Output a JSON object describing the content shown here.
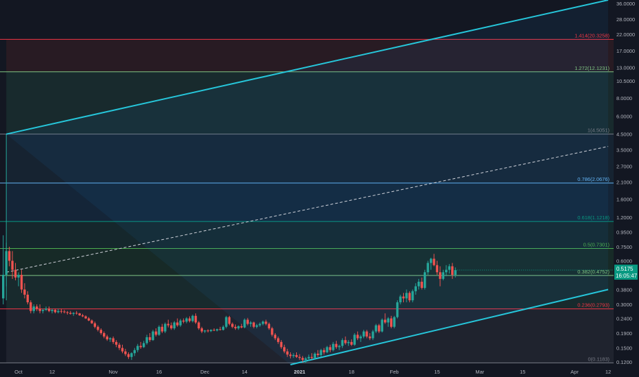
{
  "chart_data": {
    "type": "candlestick",
    "y_scale": "log",
    "ylim": [
      0.115,
      38.0
    ],
    "price_ticks": [
      "36.0000",
      "28.0000",
      "22.0000",
      "17.0000",
      "13.0000",
      "10.5000",
      "8.0000",
      "6.0000",
      "4.5000",
      "3.5000",
      "2.7000",
      "2.1000",
      "1.6000",
      "1.2000",
      "0.9500",
      "0.7500",
      "0.6000",
      "0.4800",
      "0.3800",
      "0.3000",
      "0.2400",
      "0.1900",
      "0.1500",
      "0.1200"
    ],
    "time_ticks": [
      {
        "label": "Oct",
        "date": "2020-10-01",
        "bold": false
      },
      {
        "label": "12",
        "date": "2020-10-12",
        "bold": false
      },
      {
        "label": "Nov",
        "date": "2020-11-01",
        "bold": false
      },
      {
        "label": "16",
        "date": "2020-11-16",
        "bold": false
      },
      {
        "label": "Dec",
        "date": "2020-12-01",
        "bold": false
      },
      {
        "label": "14",
        "date": "2020-12-14",
        "bold": false
      },
      {
        "label": "2021",
        "date": "2021-01-01",
        "bold": true
      },
      {
        "label": "18",
        "date": "2021-01-18",
        "bold": false
      },
      {
        "label": "Feb",
        "date": "2021-02-01",
        "bold": false
      },
      {
        "label": "15",
        "date": "2021-02-15",
        "bold": false
      },
      {
        "label": "Mar",
        "date": "2021-03-01",
        "bold": false
      },
      {
        "label": "15",
        "date": "2021-03-15",
        "bold": false
      },
      {
        "label": "Apr",
        "date": "2021-04-01",
        "bold": false
      },
      {
        "label": "12",
        "date": "2021-04-12",
        "bold": false
      }
    ],
    "fib_levels": [
      {
        "label": "0(0.1183)",
        "value": 0.1183,
        "color": "#787b86"
      },
      {
        "label": "0.236(0.2793)",
        "value": 0.2793,
        "color": "#f23645"
      },
      {
        "label": "0.382(0.4752)",
        "value": 0.4752,
        "color": "#81c784"
      },
      {
        "label": "0.5(0.7301)",
        "value": 0.7301,
        "color": "#4caf50"
      },
      {
        "label": "0.618(1.1218)",
        "value": 1.1218,
        "color": "#089981"
      },
      {
        "label": "0.786(2.0676)",
        "value": 2.0676,
        "color": "#64b5f6"
      },
      {
        "label": "1(4.5051)",
        "value": 4.5051,
        "color": "#787b86"
      },
      {
        "label": "1.272(12.1231)",
        "value": 12.1231,
        "color": "#81c784"
      },
      {
        "label": "1.414(20.3258)",
        "value": 20.3258,
        "color": "#f23645"
      }
    ],
    "channel": {
      "color": "#26c6da",
      "upper": {
        "from": {
          "date": "2020-09-27",
          "value": 4.5
        },
        "to": {
          "date": "2021-04-12",
          "value": 38.0
        }
      },
      "lower": {
        "from": {
          "date": "2020-12-29",
          "value": 0.115
        },
        "to": {
          "date": "2021-04-12",
          "value": 0.38
        }
      },
      "mid": {
        "from": {
          "date": "2020-09-27",
          "value": 0.5
        },
        "to": {
          "date": "2021-04-12",
          "value": 3.7
        }
      }
    },
    "ohlc": [
      [
        "2020-09-26",
        0.33,
        0.9,
        0.3,
        0.48
      ],
      [
        "2020-09-27",
        0.48,
        0.8,
        0.4,
        0.7
      ],
      [
        "2020-09-28",
        0.7,
        0.75,
        0.55,
        0.6
      ],
      [
        "2020-09-29",
        0.6,
        0.7,
        0.45,
        0.52
      ],
      [
        "2020-09-30",
        0.52,
        0.58,
        0.44,
        0.46
      ],
      [
        "2020-10-01",
        0.46,
        0.5,
        0.4,
        0.48
      ],
      [
        "2020-10-02",
        0.48,
        0.52,
        0.36,
        0.38
      ],
      [
        "2020-10-03",
        0.38,
        0.42,
        0.33,
        0.35
      ],
      [
        "2020-10-04",
        0.35,
        0.37,
        0.3,
        0.31
      ],
      [
        "2020-10-05",
        0.31,
        0.32,
        0.26,
        0.27
      ],
      [
        "2020-10-06",
        0.27,
        0.3,
        0.26,
        0.29
      ],
      [
        "2020-10-07",
        0.29,
        0.3,
        0.27,
        0.28
      ],
      [
        "2020-10-08",
        0.28,
        0.3,
        0.26,
        0.27
      ],
      [
        "2020-10-09",
        0.27,
        0.28,
        0.26,
        0.275
      ],
      [
        "2020-10-10",
        0.275,
        0.29,
        0.27,
        0.28
      ],
      [
        "2020-10-11",
        0.28,
        0.29,
        0.265,
        0.27
      ],
      [
        "2020-10-12",
        0.27,
        0.28,
        0.26,
        0.275
      ],
      [
        "2020-10-13",
        0.275,
        0.28,
        0.26,
        0.265
      ],
      [
        "2020-10-14",
        0.265,
        0.28,
        0.26,
        0.27
      ],
      [
        "2020-10-15",
        0.27,
        0.28,
        0.26,
        0.268
      ],
      [
        "2020-10-16",
        0.268,
        0.275,
        0.26,
        0.265
      ],
      [
        "2020-10-17",
        0.265,
        0.27,
        0.255,
        0.262
      ],
      [
        "2020-10-18",
        0.262,
        0.27,
        0.255,
        0.258
      ],
      [
        "2020-10-19",
        0.258,
        0.265,
        0.25,
        0.262
      ],
      [
        "2020-10-20",
        0.262,
        0.27,
        0.255,
        0.26
      ],
      [
        "2020-10-21",
        0.26,
        0.262,
        0.25,
        0.252
      ],
      [
        "2020-10-22",
        0.252,
        0.258,
        0.245,
        0.248
      ],
      [
        "2020-10-23",
        0.248,
        0.252,
        0.238,
        0.24
      ],
      [
        "2020-10-24",
        0.24,
        0.245,
        0.23,
        0.232
      ],
      [
        "2020-10-25",
        0.232,
        0.236,
        0.22,
        0.222
      ],
      [
        "2020-10-26",
        0.222,
        0.228,
        0.205,
        0.21
      ],
      [
        "2020-10-27",
        0.21,
        0.215,
        0.195,
        0.2
      ],
      [
        "2020-10-28",
        0.2,
        0.205,
        0.185,
        0.19
      ],
      [
        "2020-10-29",
        0.19,
        0.195,
        0.175,
        0.18
      ],
      [
        "2020-10-30",
        0.18,
        0.185,
        0.168,
        0.172
      ],
      [
        "2020-10-31",
        0.172,
        0.178,
        0.165,
        0.175
      ],
      [
        "2020-11-01",
        0.175,
        0.18,
        0.16,
        0.165
      ],
      [
        "2020-11-02",
        0.165,
        0.17,
        0.152,
        0.158
      ],
      [
        "2020-11-03",
        0.158,
        0.163,
        0.145,
        0.15
      ],
      [
        "2020-11-04",
        0.15,
        0.158,
        0.138,
        0.142
      ],
      [
        "2020-11-05",
        0.142,
        0.148,
        0.132,
        0.136
      ],
      [
        "2020-11-06",
        0.136,
        0.14,
        0.126,
        0.13
      ],
      [
        "2020-11-07",
        0.13,
        0.14,
        0.124,
        0.138
      ],
      [
        "2020-11-08",
        0.138,
        0.15,
        0.132,
        0.145
      ],
      [
        "2020-11-09",
        0.145,
        0.16,
        0.14,
        0.155
      ],
      [
        "2020-11-10",
        0.155,
        0.165,
        0.148,
        0.152
      ],
      [
        "2020-11-11",
        0.152,
        0.168,
        0.15,
        0.162
      ],
      [
        "2020-11-12",
        0.162,
        0.185,
        0.158,
        0.178
      ],
      [
        "2020-11-13",
        0.178,
        0.19,
        0.165,
        0.17
      ],
      [
        "2020-11-14",
        0.17,
        0.2,
        0.168,
        0.195
      ],
      [
        "2020-11-15",
        0.195,
        0.205,
        0.18,
        0.185
      ],
      [
        "2020-11-16",
        0.185,
        0.215,
        0.182,
        0.21
      ],
      [
        "2020-11-17",
        0.21,
        0.22,
        0.19,
        0.195
      ],
      [
        "2020-11-18",
        0.195,
        0.225,
        0.19,
        0.22
      ],
      [
        "2020-11-19",
        0.22,
        0.235,
        0.208,
        0.215
      ],
      [
        "2020-11-20",
        0.215,
        0.225,
        0.2,
        0.205
      ],
      [
        "2020-11-21",
        0.205,
        0.23,
        0.2,
        0.225
      ],
      [
        "2020-11-22",
        0.225,
        0.24,
        0.21,
        0.215
      ],
      [
        "2020-11-23",
        0.215,
        0.238,
        0.21,
        0.232
      ],
      [
        "2020-11-24",
        0.232,
        0.24,
        0.222,
        0.228
      ],
      [
        "2020-11-25",
        0.228,
        0.245,
        0.222,
        0.24
      ],
      [
        "2020-11-26",
        0.24,
        0.248,
        0.225,
        0.23
      ],
      [
        "2020-11-27",
        0.23,
        0.255,
        0.225,
        0.25
      ],
      [
        "2020-11-28",
        0.25,
        0.26,
        0.22,
        0.225
      ],
      [
        "2020-11-29",
        0.225,
        0.23,
        0.2,
        0.205
      ],
      [
        "2020-11-30",
        0.205,
        0.21,
        0.19,
        0.195
      ],
      [
        "2020-12-01",
        0.195,
        0.2,
        0.19,
        0.198
      ],
      [
        "2020-12-02",
        0.198,
        0.202,
        0.192,
        0.196
      ],
      [
        "2020-12-03",
        0.196,
        0.202,
        0.193,
        0.2
      ],
      [
        "2020-12-04",
        0.2,
        0.205,
        0.196,
        0.198
      ],
      [
        "2020-12-05",
        0.198,
        0.204,
        0.195,
        0.202
      ],
      [
        "2020-12-06",
        0.202,
        0.21,
        0.198,
        0.2
      ],
      [
        "2020-12-07",
        0.2,
        0.215,
        0.198,
        0.21
      ],
      [
        "2020-12-08",
        0.21,
        0.25,
        0.205,
        0.245
      ],
      [
        "2020-12-09",
        0.245,
        0.25,
        0.215,
        0.22
      ],
      [
        "2020-12-10",
        0.22,
        0.225,
        0.205,
        0.21
      ],
      [
        "2020-12-11",
        0.21,
        0.218,
        0.2,
        0.205
      ],
      [
        "2020-12-12",
        0.205,
        0.215,
        0.2,
        0.212
      ],
      [
        "2020-12-13",
        0.212,
        0.22,
        0.205,
        0.208
      ],
      [
        "2020-12-14",
        0.208,
        0.24,
        0.205,
        0.235
      ],
      [
        "2020-12-15",
        0.235,
        0.242,
        0.215,
        0.22
      ],
      [
        "2020-12-16",
        0.22,
        0.23,
        0.21,
        0.225
      ],
      [
        "2020-12-17",
        0.225,
        0.228,
        0.205,
        0.21
      ],
      [
        "2020-12-18",
        0.21,
        0.22,
        0.205,
        0.215
      ],
      [
        "2020-12-19",
        0.215,
        0.225,
        0.21,
        0.22
      ],
      [
        "2020-12-20",
        0.22,
        0.232,
        0.215,
        0.228
      ],
      [
        "2020-12-21",
        0.228,
        0.235,
        0.215,
        0.22
      ],
      [
        "2020-12-22",
        0.22,
        0.225,
        0.2,
        0.205
      ],
      [
        "2020-12-23",
        0.205,
        0.21,
        0.18,
        0.185
      ],
      [
        "2020-12-24",
        0.185,
        0.19,
        0.17,
        0.175
      ],
      [
        "2020-12-25",
        0.175,
        0.18,
        0.16,
        0.165
      ],
      [
        "2020-12-26",
        0.165,
        0.17,
        0.148,
        0.152
      ],
      [
        "2020-12-27",
        0.152,
        0.158,
        0.138,
        0.142
      ],
      [
        "2020-12-28",
        0.142,
        0.148,
        0.13,
        0.135
      ],
      [
        "2020-12-29",
        0.135,
        0.14,
        0.127,
        0.132
      ],
      [
        "2020-12-30",
        0.132,
        0.138,
        0.128,
        0.134
      ],
      [
        "2020-12-31",
        0.134,
        0.14,
        0.128,
        0.13
      ],
      [
        "2021-01-01",
        0.13,
        0.136,
        0.124,
        0.128
      ],
      [
        "2021-01-02",
        0.128,
        0.132,
        0.12,
        0.124
      ],
      [
        "2021-01-03",
        0.124,
        0.13,
        0.118,
        0.127
      ],
      [
        "2021-01-04",
        0.127,
        0.135,
        0.122,
        0.13
      ],
      [
        "2021-01-05",
        0.13,
        0.138,
        0.125,
        0.128
      ],
      [
        "2021-01-06",
        0.128,
        0.14,
        0.126,
        0.137
      ],
      [
        "2021-01-07",
        0.137,
        0.145,
        0.13,
        0.134
      ],
      [
        "2021-01-08",
        0.134,
        0.148,
        0.13,
        0.145
      ],
      [
        "2021-01-09",
        0.145,
        0.15,
        0.135,
        0.14
      ],
      [
        "2021-01-10",
        0.14,
        0.155,
        0.138,
        0.152
      ],
      [
        "2021-01-11",
        0.152,
        0.158,
        0.14,
        0.145
      ],
      [
        "2021-01-12",
        0.145,
        0.165,
        0.142,
        0.16
      ],
      [
        "2021-01-13",
        0.16,
        0.168,
        0.148,
        0.152
      ],
      [
        "2021-01-14",
        0.152,
        0.158,
        0.145,
        0.155
      ],
      [
        "2021-01-15",
        0.155,
        0.175,
        0.15,
        0.17
      ],
      [
        "2021-01-16",
        0.17,
        0.18,
        0.158,
        0.162
      ],
      [
        "2021-01-17",
        0.162,
        0.17,
        0.155,
        0.165
      ],
      [
        "2021-01-18",
        0.165,
        0.172,
        0.155,
        0.158
      ],
      [
        "2021-01-19",
        0.158,
        0.19,
        0.155,
        0.185
      ],
      [
        "2021-01-20",
        0.185,
        0.195,
        0.17,
        0.175
      ],
      [
        "2021-01-21",
        0.175,
        0.185,
        0.165,
        0.18
      ],
      [
        "2021-01-22",
        0.18,
        0.2,
        0.175,
        0.195
      ],
      [
        "2021-01-23",
        0.195,
        0.2,
        0.175,
        0.18
      ],
      [
        "2021-01-24",
        0.18,
        0.19,
        0.17,
        0.175
      ],
      [
        "2021-01-25",
        0.175,
        0.2,
        0.17,
        0.195
      ],
      [
        "2021-01-26",
        0.195,
        0.22,
        0.19,
        0.215
      ],
      [
        "2021-01-27",
        0.215,
        0.22,
        0.19,
        0.195
      ],
      [
        "2021-01-28",
        0.195,
        0.24,
        0.192,
        0.235
      ],
      [
        "2021-01-29",
        0.235,
        0.26,
        0.22,
        0.225
      ],
      [
        "2021-01-30",
        0.225,
        0.245,
        0.21,
        0.24
      ],
      [
        "2021-01-31",
        0.24,
        0.25,
        0.205,
        0.21
      ],
      [
        "2021-02-01",
        0.21,
        0.25,
        0.205,
        0.245
      ],
      [
        "2021-02-02",
        0.245,
        0.32,
        0.24,
        0.31
      ],
      [
        "2021-02-03",
        0.31,
        0.35,
        0.3,
        0.34
      ],
      [
        "2021-02-04",
        0.34,
        0.36,
        0.31,
        0.33
      ],
      [
        "2021-02-05",
        0.33,
        0.38,
        0.31,
        0.36
      ],
      [
        "2021-02-06",
        0.36,
        0.37,
        0.31,
        0.32
      ],
      [
        "2021-02-07",
        0.32,
        0.38,
        0.31,
        0.37
      ],
      [
        "2021-02-08",
        0.37,
        0.42,
        0.35,
        0.4
      ],
      [
        "2021-02-09",
        0.4,
        0.45,
        0.38,
        0.43
      ],
      [
        "2021-02-10",
        0.43,
        0.46,
        0.38,
        0.39
      ],
      [
        "2021-02-11",
        0.39,
        0.52,
        0.38,
        0.5
      ],
      [
        "2021-02-12",
        0.5,
        0.6,
        0.48,
        0.58
      ],
      [
        "2021-02-13",
        0.58,
        0.63,
        0.52,
        0.62
      ],
      [
        "2021-02-14",
        0.62,
        0.67,
        0.55,
        0.56
      ],
      [
        "2021-02-15",
        0.56,
        0.6,
        0.48,
        0.5
      ],
      [
        "2021-02-16",
        0.5,
        0.55,
        0.4,
        0.45
      ],
      [
        "2021-02-17",
        0.45,
        0.52,
        0.44,
        0.5
      ],
      [
        "2021-02-18",
        0.5,
        0.56,
        0.47,
        0.52
      ],
      [
        "2021-02-19",
        0.52,
        0.57,
        0.49,
        0.55
      ],
      [
        "2021-02-20",
        0.55,
        0.58,
        0.45,
        0.48
      ],
      [
        "2021-02-21",
        0.48,
        0.54,
        0.46,
        0.5175
      ]
    ],
    "current_price_label": "0.5175",
    "countdown_label": "16:05:47"
  }
}
